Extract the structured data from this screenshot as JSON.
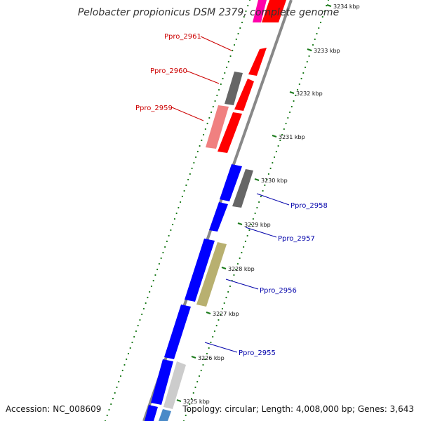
{
  "title": "Pelobacter propionicus DSM 2379, complete genome",
  "footer": {
    "accession": "Accession: NC_008609",
    "summary": "Topology: circular; Length: 4,008,000 bp; Genes: 3,643"
  },
  "ticks": [
    "3234 kbp",
    "3233 kbp",
    "3232 kbp",
    "3231 kbp",
    "3230 kbp",
    "3229 kbp",
    "3228 kbp",
    "3227 kbp",
    "3226 kbp",
    "3225 kbp"
  ],
  "gene_labels": {
    "ppro2961": "Ppro_2961",
    "ppro2960": "Ppro_2960",
    "ppro2959": "Ppro_2959",
    "ppro2958": "Ppro_2958",
    "ppro2957": "Ppro_2957",
    "ppro2956": "Ppro_2956",
    "ppro2955": "Ppro_2955"
  },
  "colors": {
    "forward_strand_label": "#cc0000",
    "reverse_strand_label": "#0000aa",
    "red_gene": "#ff0000",
    "blue_gene": "#0000ff",
    "gray_gene": "#666666",
    "pink_gene": "#ff00aa",
    "salmon_gene": "#f08080",
    "olive_gene": "#b8b070",
    "silver_gene": "#cccccc",
    "steel_gene": "#4a8ac8",
    "backbone": "#888888",
    "dots": "#1a7a1a"
  }
}
